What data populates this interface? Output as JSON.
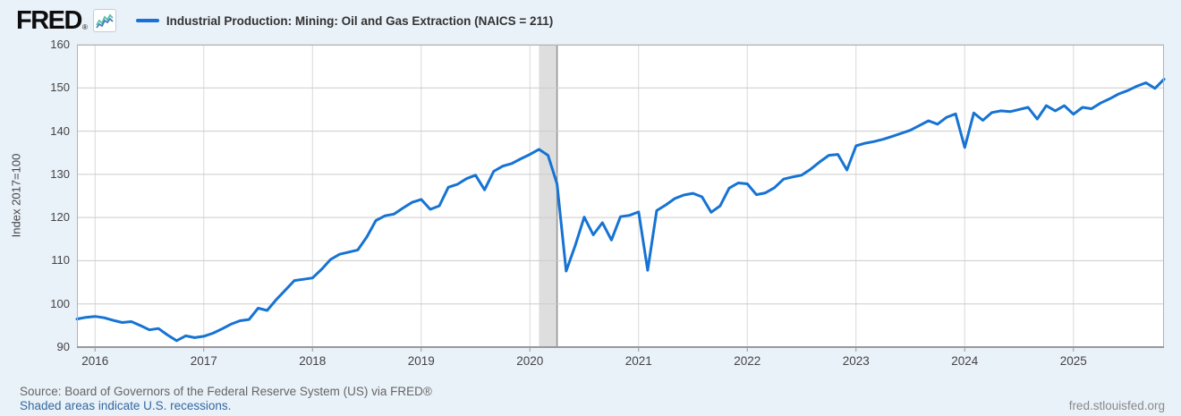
{
  "header": {
    "logo_text": "FRED",
    "registered_mark": "®",
    "legend_label": "Industrial Production: Mining: Oil and Gas Extraction (NAICS = 211)"
  },
  "footer": {
    "source_text": "Source: Board of Governors of the Federal Reserve System (US) via FRED®",
    "recession_note": "Shaded areas indicate U.S. recessions.",
    "site_url": "fred.stlouisfed.org"
  },
  "colors": {
    "page_bg": "#e9f1f9",
    "plot_bg": "#ffffff",
    "line": "#1673d3",
    "grid_h": "#cccccc",
    "grid_v": "#d9d9d9",
    "plot_border": "#b3b3b3",
    "axis_bottom": "#999999",
    "recession_band": "#dedede",
    "recession_edge": "#8f8f8f",
    "logo_icon_blue": "#4a7ebb",
    "logo_icon_teal": "#5bbfad"
  },
  "chart_data": {
    "type": "line",
    "title": "Industrial Production: Mining: Oil and Gas Extraction (NAICS = 211)",
    "xlabel": "",
    "ylabel": "Index 2017=100",
    "ylim": [
      90,
      160
    ],
    "y_ticks": [
      160,
      150,
      140,
      130,
      120,
      110,
      100,
      90
    ],
    "x_ticks": [
      "2016",
      "2017",
      "2018",
      "2019",
      "2020",
      "2021",
      "2022",
      "2023",
      "2024",
      "2025"
    ],
    "grid": true,
    "legend_position": "top-left",
    "frequency": "monthly",
    "start_month": "2015-11",
    "end_month": "2025-11",
    "recession_bands": [
      {
        "start": "2020-02",
        "end": "2020-04",
        "start_index": 51,
        "end_index": 53
      }
    ],
    "series": [
      {
        "name": "Industrial Production: Mining: Oil and Gas Extraction (NAICS = 211)",
        "color": "#1673d3",
        "values": [
          96.5,
          96.9,
          97.1,
          96.8,
          96.2,
          95.7,
          95.9,
          95.0,
          94.0,
          94.3,
          92.8,
          91.5,
          92.6,
          92.2,
          92.5,
          93.2,
          94.2,
          95.3,
          96.1,
          96.4,
          99.0,
          98.5,
          101.0,
          103.2,
          105.4,
          105.7,
          106.0,
          108.0,
          110.3,
          111.5,
          112.0,
          112.5,
          115.5,
          119.3,
          120.4,
          120.8,
          122.2,
          123.5,
          124.2,
          121.9,
          122.7,
          127.0,
          127.7,
          129.0,
          129.8,
          126.4,
          130.7,
          131.9,
          132.5,
          133.6,
          134.6,
          135.8,
          134.4,
          127.8,
          107.6,
          113.5,
          120.1,
          116.0,
          118.8,
          114.8,
          120.2,
          120.5,
          121.3,
          107.8,
          121.6,
          122.9,
          124.4,
          125.2,
          125.6,
          124.8,
          121.2,
          122.7,
          126.8,
          128.0,
          127.8,
          125.3,
          125.7,
          126.9,
          128.9,
          129.4,
          129.8,
          131.2,
          132.9,
          134.4,
          134.6,
          131.0,
          136.6,
          137.2,
          137.6,
          138.1,
          138.8,
          139.5,
          140.2,
          141.3,
          142.4,
          141.6,
          143.2,
          144.0,
          136.2,
          144.2,
          142.5,
          144.3,
          144.7,
          144.5,
          145.0,
          145.5,
          142.8,
          145.9,
          144.7,
          145.9,
          143.9,
          145.5,
          145.2,
          146.5,
          147.5,
          148.6,
          149.4,
          150.4,
          151.2,
          149.9,
          152.0
        ]
      }
    ]
  }
}
